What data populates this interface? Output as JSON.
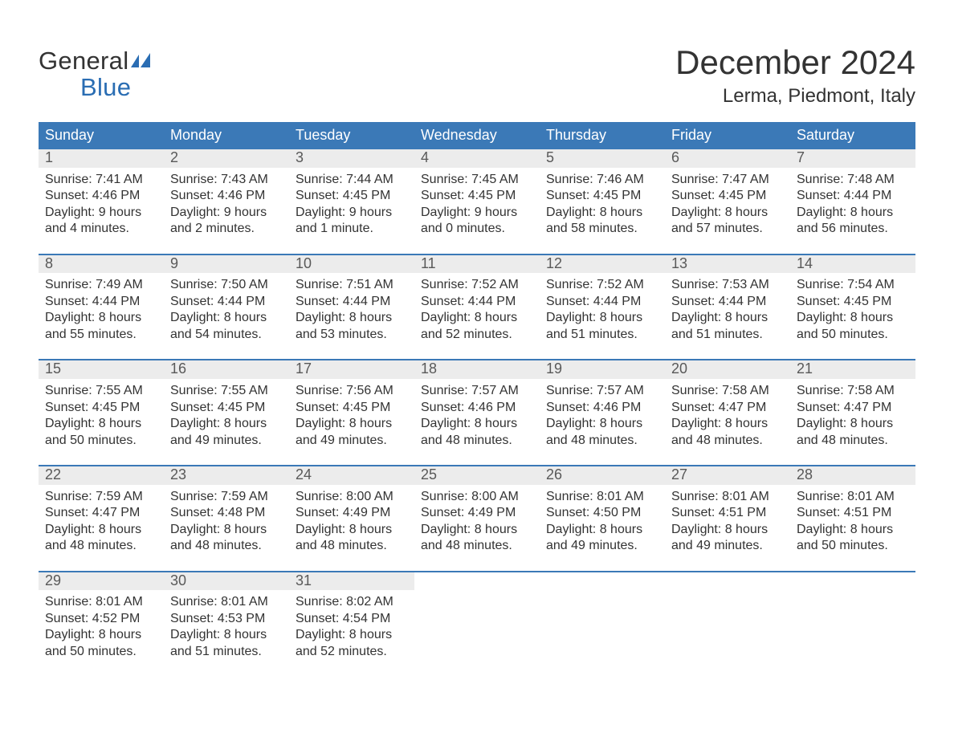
{
  "brand": {
    "word1": "General",
    "word2": "Blue"
  },
  "title": "December 2024",
  "subtitle": "Lerma, Piedmont, Italy",
  "colors": {
    "header_bg": "#3b79b7",
    "header_text": "#ffffff",
    "row_accent": "#3b79b7",
    "daynum_bg": "#ececec",
    "daynum_text": "#595959",
    "body_text": "#333333",
    "brand_blue": "#2a6db3",
    "page_bg": "#ffffff"
  },
  "font": {
    "title_size": 42,
    "subtitle_size": 24,
    "header_size": 18,
    "daynum_size": 18,
    "body_size": 16,
    "family": "Arial"
  },
  "weekdays": [
    "Sunday",
    "Monday",
    "Tuesday",
    "Wednesday",
    "Thursday",
    "Friday",
    "Saturday"
  ],
  "weeks": [
    [
      {
        "day": "1",
        "sunrise": "Sunrise: 7:41 AM",
        "sunset": "Sunset: 4:46 PM",
        "day1": "Daylight: 9 hours",
        "day2": "and 4 minutes."
      },
      {
        "day": "2",
        "sunrise": "Sunrise: 7:43 AM",
        "sunset": "Sunset: 4:46 PM",
        "day1": "Daylight: 9 hours",
        "day2": "and 2 minutes."
      },
      {
        "day": "3",
        "sunrise": "Sunrise: 7:44 AM",
        "sunset": "Sunset: 4:45 PM",
        "day1": "Daylight: 9 hours",
        "day2": "and 1 minute."
      },
      {
        "day": "4",
        "sunrise": "Sunrise: 7:45 AM",
        "sunset": "Sunset: 4:45 PM",
        "day1": "Daylight: 9 hours",
        "day2": "and 0 minutes."
      },
      {
        "day": "5",
        "sunrise": "Sunrise: 7:46 AM",
        "sunset": "Sunset: 4:45 PM",
        "day1": "Daylight: 8 hours",
        "day2": "and 58 minutes."
      },
      {
        "day": "6",
        "sunrise": "Sunrise: 7:47 AM",
        "sunset": "Sunset: 4:45 PM",
        "day1": "Daylight: 8 hours",
        "day2": "and 57 minutes."
      },
      {
        "day": "7",
        "sunrise": "Sunrise: 7:48 AM",
        "sunset": "Sunset: 4:44 PM",
        "day1": "Daylight: 8 hours",
        "day2": "and 56 minutes."
      }
    ],
    [
      {
        "day": "8",
        "sunrise": "Sunrise: 7:49 AM",
        "sunset": "Sunset: 4:44 PM",
        "day1": "Daylight: 8 hours",
        "day2": "and 55 minutes."
      },
      {
        "day": "9",
        "sunrise": "Sunrise: 7:50 AM",
        "sunset": "Sunset: 4:44 PM",
        "day1": "Daylight: 8 hours",
        "day2": "and 54 minutes."
      },
      {
        "day": "10",
        "sunrise": "Sunrise: 7:51 AM",
        "sunset": "Sunset: 4:44 PM",
        "day1": "Daylight: 8 hours",
        "day2": "and 53 minutes."
      },
      {
        "day": "11",
        "sunrise": "Sunrise: 7:52 AM",
        "sunset": "Sunset: 4:44 PM",
        "day1": "Daylight: 8 hours",
        "day2": "and 52 minutes."
      },
      {
        "day": "12",
        "sunrise": "Sunrise: 7:52 AM",
        "sunset": "Sunset: 4:44 PM",
        "day1": "Daylight: 8 hours",
        "day2": "and 51 minutes."
      },
      {
        "day": "13",
        "sunrise": "Sunrise: 7:53 AM",
        "sunset": "Sunset: 4:44 PM",
        "day1": "Daylight: 8 hours",
        "day2": "and 51 minutes."
      },
      {
        "day": "14",
        "sunrise": "Sunrise: 7:54 AM",
        "sunset": "Sunset: 4:45 PM",
        "day1": "Daylight: 8 hours",
        "day2": "and 50 minutes."
      }
    ],
    [
      {
        "day": "15",
        "sunrise": "Sunrise: 7:55 AM",
        "sunset": "Sunset: 4:45 PM",
        "day1": "Daylight: 8 hours",
        "day2": "and 50 minutes."
      },
      {
        "day": "16",
        "sunrise": "Sunrise: 7:55 AM",
        "sunset": "Sunset: 4:45 PM",
        "day1": "Daylight: 8 hours",
        "day2": "and 49 minutes."
      },
      {
        "day": "17",
        "sunrise": "Sunrise: 7:56 AM",
        "sunset": "Sunset: 4:45 PM",
        "day1": "Daylight: 8 hours",
        "day2": "and 49 minutes."
      },
      {
        "day": "18",
        "sunrise": "Sunrise: 7:57 AM",
        "sunset": "Sunset: 4:46 PM",
        "day1": "Daylight: 8 hours",
        "day2": "and 48 minutes."
      },
      {
        "day": "19",
        "sunrise": "Sunrise: 7:57 AM",
        "sunset": "Sunset: 4:46 PM",
        "day1": "Daylight: 8 hours",
        "day2": "and 48 minutes."
      },
      {
        "day": "20",
        "sunrise": "Sunrise: 7:58 AM",
        "sunset": "Sunset: 4:47 PM",
        "day1": "Daylight: 8 hours",
        "day2": "and 48 minutes."
      },
      {
        "day": "21",
        "sunrise": "Sunrise: 7:58 AM",
        "sunset": "Sunset: 4:47 PM",
        "day1": "Daylight: 8 hours",
        "day2": "and 48 minutes."
      }
    ],
    [
      {
        "day": "22",
        "sunrise": "Sunrise: 7:59 AM",
        "sunset": "Sunset: 4:47 PM",
        "day1": "Daylight: 8 hours",
        "day2": "and 48 minutes."
      },
      {
        "day": "23",
        "sunrise": "Sunrise: 7:59 AM",
        "sunset": "Sunset: 4:48 PM",
        "day1": "Daylight: 8 hours",
        "day2": "and 48 minutes."
      },
      {
        "day": "24",
        "sunrise": "Sunrise: 8:00 AM",
        "sunset": "Sunset: 4:49 PM",
        "day1": "Daylight: 8 hours",
        "day2": "and 48 minutes."
      },
      {
        "day": "25",
        "sunrise": "Sunrise: 8:00 AM",
        "sunset": "Sunset: 4:49 PM",
        "day1": "Daylight: 8 hours",
        "day2": "and 48 minutes."
      },
      {
        "day": "26",
        "sunrise": "Sunrise: 8:01 AM",
        "sunset": "Sunset: 4:50 PM",
        "day1": "Daylight: 8 hours",
        "day2": "and 49 minutes."
      },
      {
        "day": "27",
        "sunrise": "Sunrise: 8:01 AM",
        "sunset": "Sunset: 4:51 PM",
        "day1": "Daylight: 8 hours",
        "day2": "and 49 minutes."
      },
      {
        "day": "28",
        "sunrise": "Sunrise: 8:01 AM",
        "sunset": "Sunset: 4:51 PM",
        "day1": "Daylight: 8 hours",
        "day2": "and 50 minutes."
      }
    ],
    [
      {
        "day": "29",
        "sunrise": "Sunrise: 8:01 AM",
        "sunset": "Sunset: 4:52 PM",
        "day1": "Daylight: 8 hours",
        "day2": "and 50 minutes."
      },
      {
        "day": "30",
        "sunrise": "Sunrise: 8:01 AM",
        "sunset": "Sunset: 4:53 PM",
        "day1": "Daylight: 8 hours",
        "day2": "and 51 minutes."
      },
      {
        "day": "31",
        "sunrise": "Sunrise: 8:02 AM",
        "sunset": "Sunset: 4:54 PM",
        "day1": "Daylight: 8 hours",
        "day2": "and 52 minutes."
      },
      null,
      null,
      null,
      null
    ]
  ]
}
